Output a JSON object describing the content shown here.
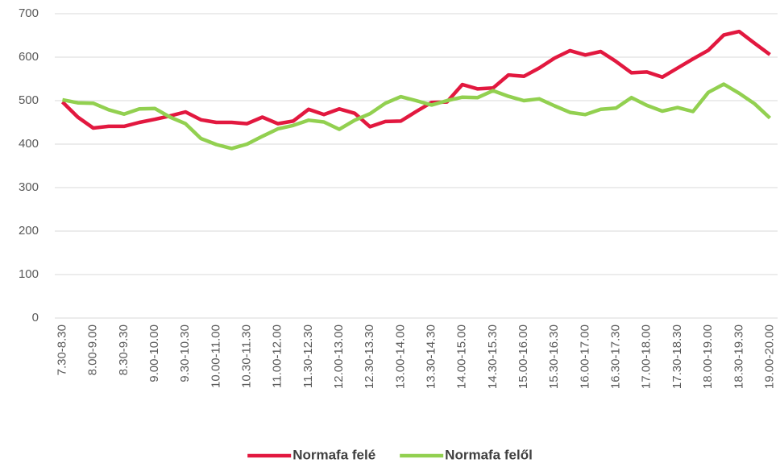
{
  "chart_data": {
    "type": "line",
    "categories": [
      "7.30-8.30",
      null,
      "8.00-9.00",
      null,
      "8.30-9.30",
      null,
      "9.00-10.00",
      null,
      "9.30-10.30",
      null,
      "10.00-11.00",
      null,
      "10.30-11.30",
      null,
      "11.00-12.00",
      null,
      "11.30-12.30",
      null,
      "12.00-13.00",
      null,
      "12.30-13.30",
      null,
      "13.00-14.00",
      null,
      "13.30-14.30",
      null,
      "14.00-15.00",
      null,
      "14.30-15.30",
      null,
      "15.00-16.00",
      null,
      "15.30-16.30",
      null,
      "16.00-17.00",
      null,
      "16.30-17.30",
      null,
      "17.00-18.00",
      null,
      "17.30-18.30",
      null,
      "18.00-19.00",
      null,
      "18.30-19.30",
      null,
      "19.00-20.00"
    ],
    "series": [
      {
        "name": "Normafa felé",
        "color": "#e2183f",
        "values": [
          497,
          462,
          437,
          441,
          441,
          450,
          457,
          465,
          474,
          456,
          450,
          450,
          447,
          462,
          447,
          453,
          480,
          468,
          481,
          471,
          440,
          452,
          453,
          475,
          496,
          497,
          537,
          527,
          529,
          559,
          556,
          575,
          598,
          615,
          605,
          613,
          590,
          564,
          566,
          554,
          575,
          596,
          616,
          651,
          659,
          632,
          606
        ]
      },
      {
        "name": "Normafa felől",
        "color": "#92d050",
        "values": [
          502,
          495,
          494,
          479,
          469,
          481,
          482,
          462,
          447,
          413,
          399,
          390,
          400,
          418,
          435,
          443,
          455,
          451,
          434,
          455,
          470,
          494,
          509,
          500,
          490,
          500,
          508,
          507,
          523,
          510,
          500,
          504,
          488,
          473,
          468,
          480,
          483,
          507,
          489,
          476,
          484,
          475,
          519,
          538,
          517,
          493,
          460
        ]
      }
    ],
    "ylim": [
      0,
      700
    ],
    "yticks": [
      0,
      100,
      200,
      300,
      400,
      500,
      600,
      700
    ],
    "grid": true,
    "legend": "bottom"
  }
}
